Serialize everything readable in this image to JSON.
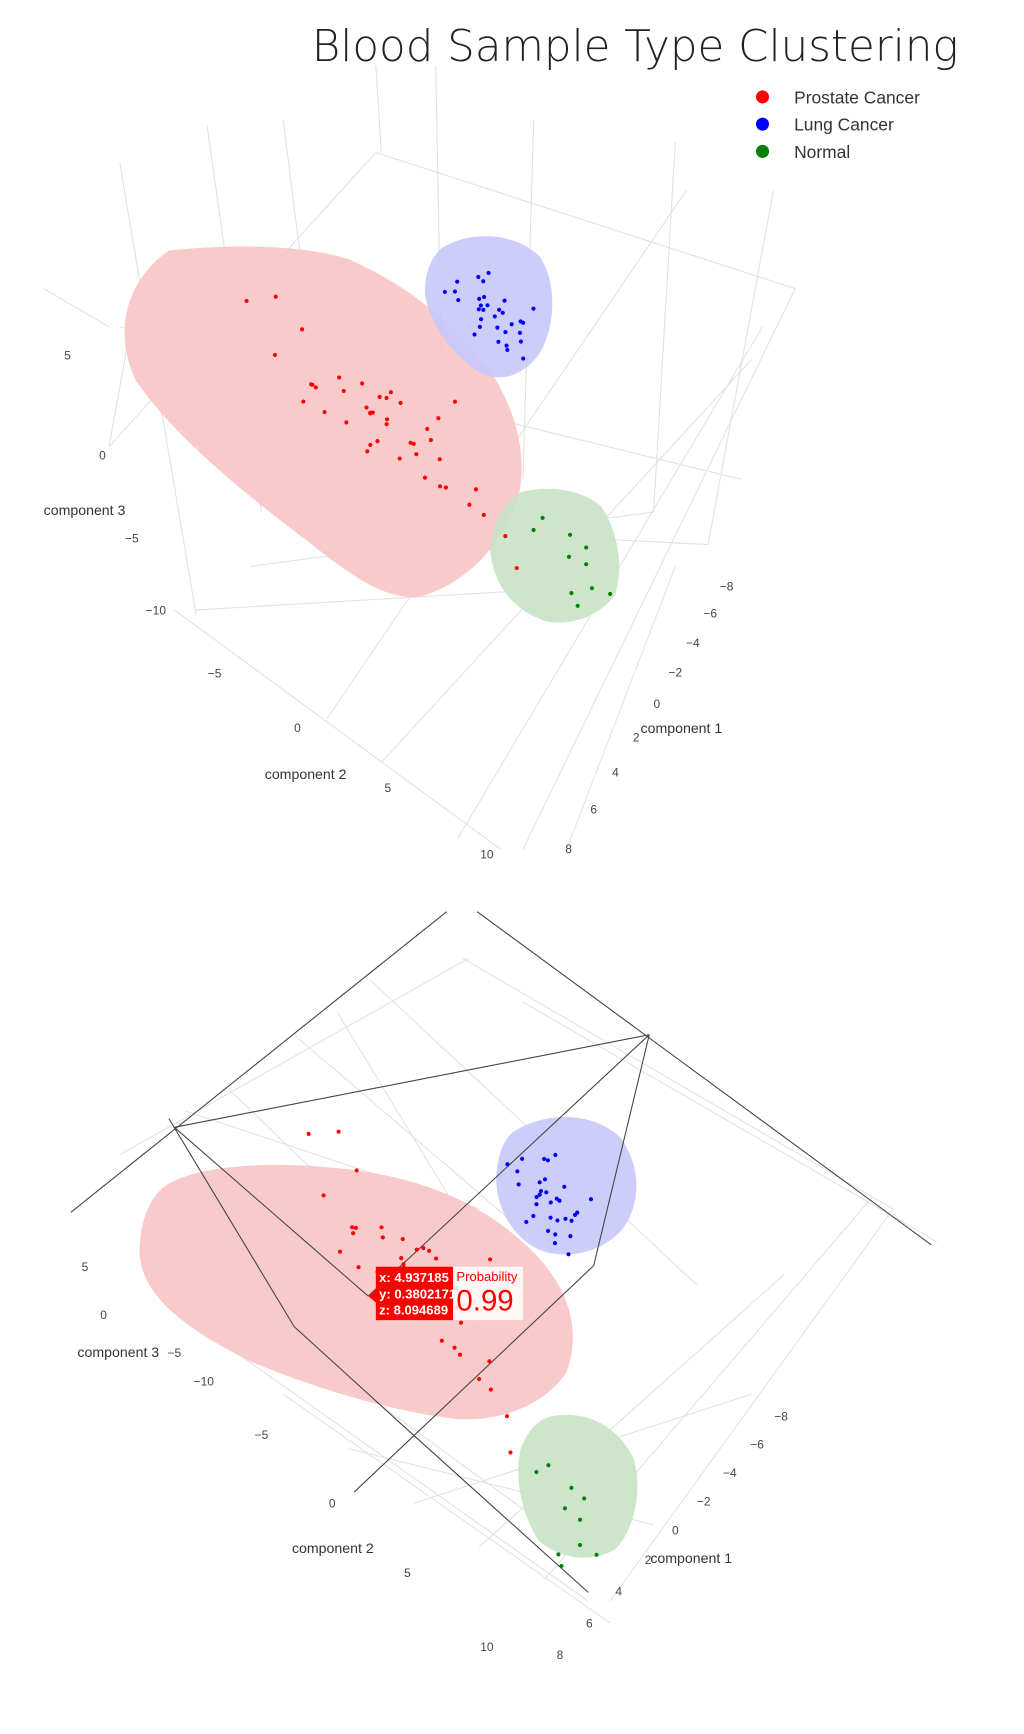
{
  "chart_data": {
    "type": "scatter3d",
    "title": "Blood Sample Type Clustering",
    "legend": {
      "placement": "top-right",
      "entries": [
        "Prostate Cancer",
        "Lung Cancer",
        "Normal"
      ]
    },
    "axes": {
      "x": {
        "label": "component 1",
        "ticks": [
          "−8",
          "−6",
          "−4",
          "−2",
          "0",
          "2",
          "4",
          "6",
          "8"
        ]
      },
      "y": {
        "label": "component 2",
        "ticks": [
          "−5",
          "0",
          "5",
          "10"
        ]
      },
      "z": {
        "label": "component 3",
        "ticks": [
          "5",
          "0",
          "−5",
          "−10"
        ]
      }
    },
    "series": [
      {
        "name": "Prostate Cancer",
        "color": "#ff0000",
        "hull_color": "#f8c4c4",
        "points": [
          [
            4.2,
            -6.5,
            9.1
          ],
          [
            5.1,
            -4.8,
            8.0
          ],
          [
            3.6,
            -3.9,
            8.7
          ],
          [
            4.8,
            -3.2,
            7.1
          ],
          [
            5.5,
            -2.5,
            8.3
          ],
          [
            4.0,
            -2.0,
            7.6
          ],
          [
            3.2,
            -1.4,
            6.9
          ],
          [
            4.9,
            -1.0,
            8.4
          ],
          [
            5.8,
            -0.6,
            7.7
          ],
          [
            4.4,
            -0.2,
            7.2
          ],
          [
            3.9,
            0.3,
            8.0
          ],
          [
            5.2,
            0.5,
            6.8
          ],
          [
            4.6,
            0.9,
            7.5
          ],
          [
            3.5,
            1.2,
            7.9
          ],
          [
            5.0,
            1.5,
            8.6
          ],
          [
            4.1,
            1.8,
            6.5
          ],
          [
            5.6,
            2.1,
            7.3
          ],
          [
            4.7,
            2.4,
            6.9
          ],
          [
            3.8,
            2.8,
            7.8
          ],
          [
            5.3,
            3.1,
            6.6
          ],
          [
            4.3,
            3.5,
            7.0
          ],
          [
            4.9,
            3.9,
            6.2
          ],
          [
            5.7,
            4.4,
            7.4
          ],
          [
            4.0,
            5.0,
            6.0
          ],
          [
            4.6,
            5.6,
            5.5
          ],
          [
            3.4,
            -5.2,
            9.5
          ],
          [
            5.9,
            -1.8,
            9.0
          ],
          [
            2.8,
            0.0,
            7.0
          ],
          [
            6.2,
            1.0,
            7.9
          ],
          [
            4.5,
            6.5,
            4.8
          ],
          [
            3.1,
            2.0,
            5.9
          ],
          [
            5.4,
            -3.6,
            6.4
          ],
          [
            4.8,
            0.1,
            8.1
          ],
          [
            4.2,
            1.1,
            8.8
          ],
          [
            5.0,
            2.6,
            8.0
          ],
          [
            3.7,
            -0.8,
            6.1
          ],
          [
            4.4,
            4.6,
            5.2
          ],
          [
            6.0,
            0.4,
            6.9
          ],
          [
            3.3,
            3.3,
            8.3
          ],
          [
            4.9,
            -2.9,
            5.8
          ],
          [
            4.937185,
            0.3802171,
            8.094689
          ],
          [
            5.1,
            7.2,
            4.0
          ],
          [
            2.5,
            4.0,
            9.0
          ]
        ]
      },
      {
        "name": "Lung Cancer",
        "color": "#0000ff",
        "hull_color": "#c8c8fa",
        "points": [
          [
            -5.0,
            -1.2,
            5.1
          ],
          [
            -6.1,
            -0.8,
            4.6
          ],
          [
            -5.4,
            -0.5,
            4.2
          ],
          [
            -4.8,
            -0.2,
            3.8
          ],
          [
            -5.9,
            0.1,
            3.5
          ],
          [
            -5.2,
            0.4,
            4.0
          ],
          [
            -4.6,
            0.7,
            3.3
          ],
          [
            -6.3,
            0.9,
            3.0
          ],
          [
            -5.6,
            1.2,
            2.7
          ],
          [
            -5.1,
            1.5,
            2.4
          ],
          [
            -4.9,
            -1.5,
            4.4
          ],
          [
            -5.7,
            -0.4,
            3.6
          ],
          [
            -5.3,
            0.2,
            3.1
          ],
          [
            -6.0,
            0.6,
            4.3
          ],
          [
            -4.7,
            0.3,
            4.8
          ],
          [
            -5.5,
            -0.9,
            3.2
          ],
          [
            -5.0,
            1.0,
            3.7
          ],
          [
            -5.8,
            1.6,
            3.9
          ],
          [
            -4.4,
            -0.6,
            3.0
          ],
          [
            -6.4,
            -0.3,
            4.9
          ],
          [
            -5.2,
            -1.8,
            3.4
          ],
          [
            -4.9,
            0.8,
            2.6
          ],
          [
            -5.6,
            0.0,
            5.4
          ],
          [
            -5.9,
            -1.1,
            2.9
          ],
          [
            -5.1,
            1.9,
            4.2
          ],
          [
            -4.5,
            1.3,
            3.6
          ],
          [
            -6.2,
            0.3,
            2.5
          ],
          [
            -5.4,
            -0.1,
            4.6
          ],
          [
            -5.0,
            -0.7,
            2.8
          ],
          [
            -5.7,
            0.5,
            3.8
          ],
          [
            -3.8,
            -1.0,
            5.8
          ],
          [
            -6.6,
            1.8,
            4.1
          ]
        ]
      },
      {
        "name": "Normal",
        "color": "#008000",
        "hull_color": "#c8e2c4",
        "points": [
          [
            -4.2,
            -1.0,
            -8.6
          ],
          [
            -5.5,
            -1.5,
            -9.5
          ],
          [
            -4.8,
            0.2,
            -9.9
          ],
          [
            -5.2,
            0.8,
            -10.3
          ],
          [
            -4.5,
            1.4,
            -10.6
          ],
          [
            -5.9,
            -0.4,
            -10.1
          ],
          [
            -4.0,
            0.5,
            -11.8
          ],
          [
            -4.6,
            -0.3,
            -12.2
          ],
          [
            -5.3,
            1.1,
            -9.2
          ],
          [
            -5.0,
            2.0,
            -11.0
          ]
        ]
      }
    ],
    "hover": {
      "x": "x: 4.937185",
      "y": "y: 0.3802171",
      "z": "z: 8.094689",
      "label": "Probability",
      "value": "0.99"
    }
  }
}
